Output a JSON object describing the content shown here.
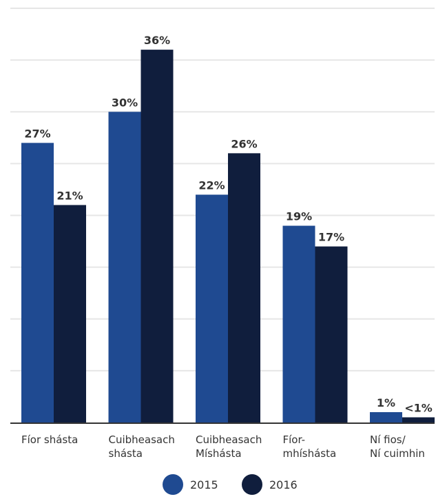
{
  "colors": {
    "series_2015": "#1f4a91",
    "series_2016": "#101e3d",
    "grid": "#e6e6e6",
    "axis": "#333333",
    "text": "#333333"
  },
  "chart_data": {
    "type": "bar",
    "title": "",
    "xlabel": "",
    "ylabel": "",
    "ylim": [
      0,
      40
    ],
    "grid": true,
    "legend_position": "bottom-center",
    "categories": [
      [
        "Fíor shásta"
      ],
      [
        "Cuibheasach",
        "shásta"
      ],
      [
        "Cuibheasach",
        "Míshásta"
      ],
      [
        "Fíor-",
        "mhíshásta"
      ],
      [
        "Ní fios/",
        "Ní cuimhin"
      ]
    ],
    "series": [
      {
        "name": "2015",
        "values": [
          27,
          30,
          22,
          19,
          1
        ],
        "labels": [
          "27%",
          "30%",
          "22%",
          "19%",
          "1%"
        ]
      },
      {
        "name": "2016",
        "values": [
          21,
          36,
          26,
          17,
          0.5
        ],
        "labels": [
          "21%",
          "36%",
          "26%",
          "17%",
          "<1%"
        ]
      }
    ]
  }
}
